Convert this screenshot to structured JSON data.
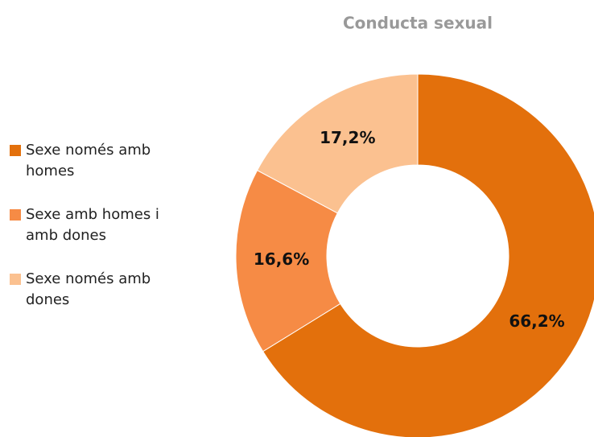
{
  "chart_data": {
    "type": "donut",
    "title": "Conducta sexual",
    "categories": [
      "Sexe només amb homes",
      "Sexe amb homes i amb dones",
      "Sexe només amb dones"
    ],
    "values": [
      66.2,
      16.6,
      17.2
    ],
    "value_labels": [
      "66,2%",
      "16,6%",
      "17,2%"
    ],
    "colors": [
      "#e3700c",
      "#f68b45",
      "#fbc190"
    ],
    "legend": "left"
  }
}
